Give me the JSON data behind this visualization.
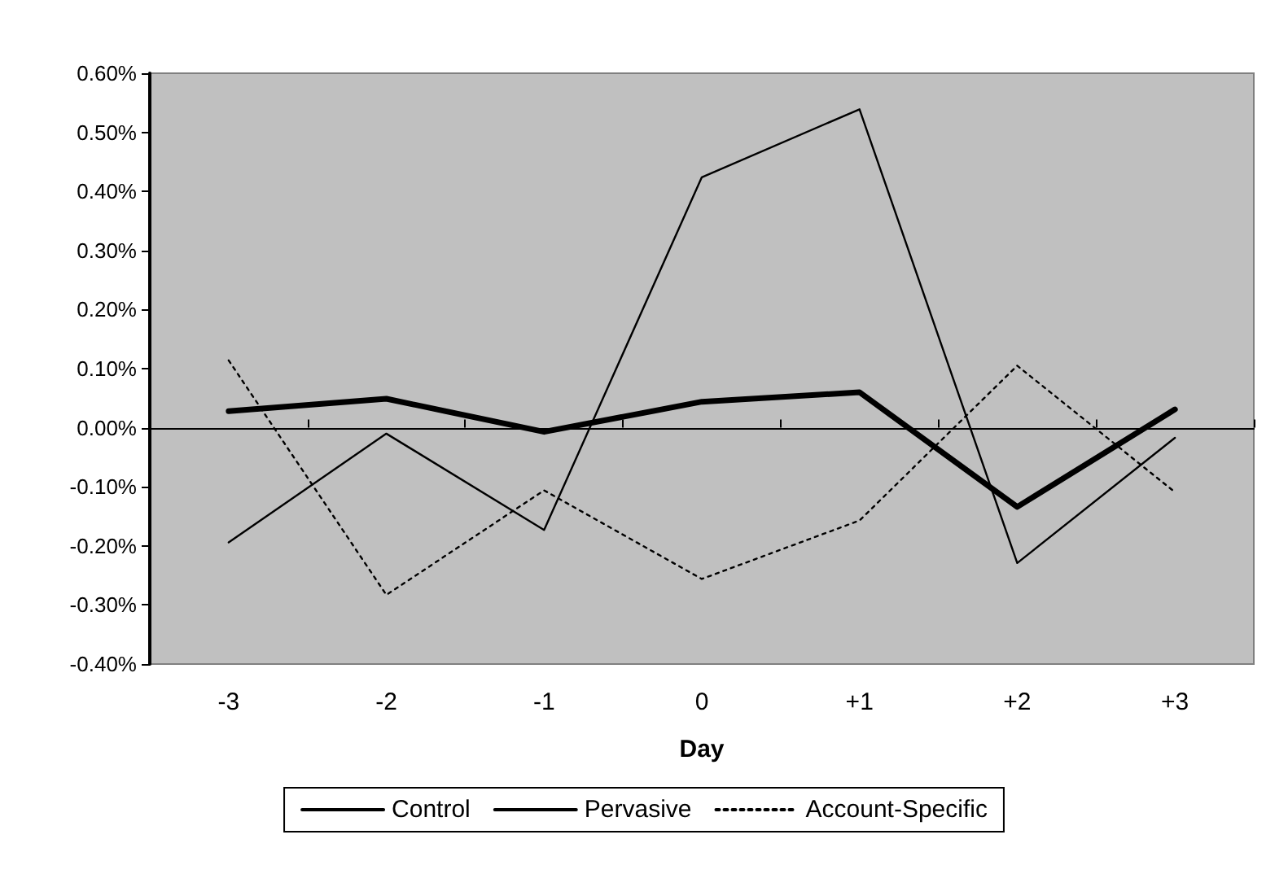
{
  "chart_data": {
    "type": "line",
    "xlabel": "Day",
    "categories": [
      "-3",
      "-2",
      "-1",
      "0",
      "+1",
      "+2",
      "+3"
    ],
    "series": [
      {
        "name": "Control",
        "color": "#000000",
        "line_style": "solid",
        "values": [
          0.028,
          0.049,
          -0.007,
          0.044,
          0.06,
          -0.134,
          0.031
        ]
      },
      {
        "name": "Pervasive",
        "color": "#000000",
        "line_style": "solid",
        "values": [
          -0.194,
          -0.01,
          -0.173,
          0.424,
          0.539,
          -0.229,
          -0.017
        ]
      },
      {
        "name": "Account-Specific",
        "color": "#000000",
        "line_style": "dotted",
        "values": [
          0.114,
          -0.283,
          -0.106,
          -0.256,
          -0.157,
          0.105,
          -0.109
        ]
      }
    ],
    "ylim": [
      -0.4,
      0.6
    ],
    "yticks": [
      {
        "value": -0.4,
        "label": "-0.40%"
      },
      {
        "value": -0.3,
        "label": "-0.30%"
      },
      {
        "value": -0.2,
        "label": "-0.20%"
      },
      {
        "value": -0.1,
        "label": "-0.10%"
      },
      {
        "value": 0,
        "label": "0.00%"
      },
      {
        "value": 0.1,
        "label": "0.10%"
      },
      {
        "value": 0.2,
        "label": "0.20%"
      },
      {
        "value": 0.3,
        "label": "0.30%"
      },
      {
        "value": 0.4,
        "label": "0.40%"
      },
      {
        "value": 0.5,
        "label": "0.50%"
      },
      {
        "value": 0.6,
        "label": "0.60%"
      }
    ],
    "legend": "bottom",
    "marker": "none"
  }
}
